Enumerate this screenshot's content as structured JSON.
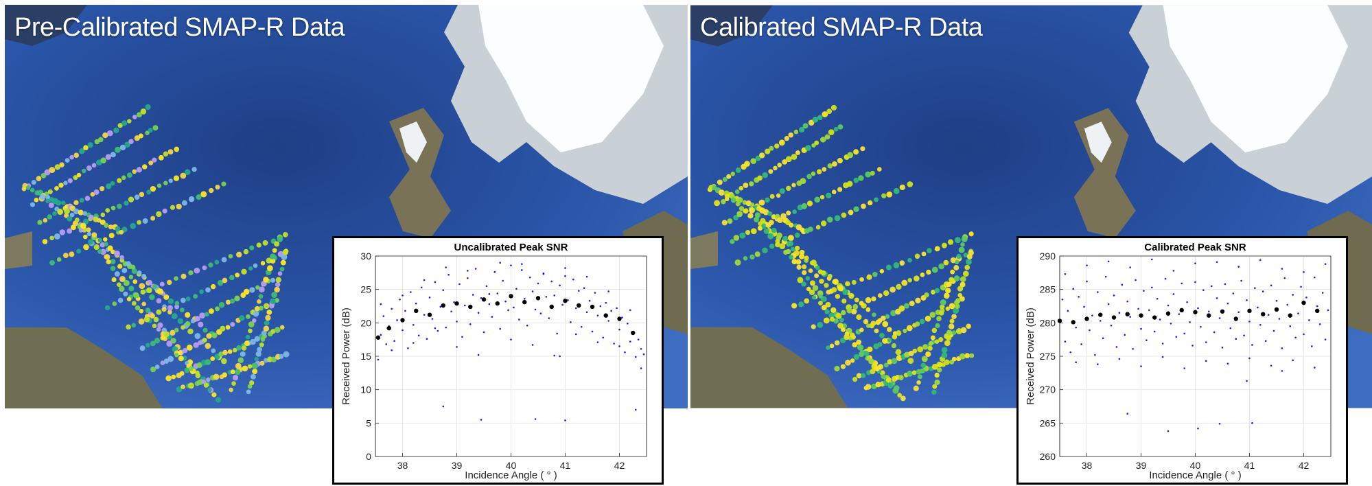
{
  "panels": [
    {
      "title": "Pre-Calibrated SMAP-R Data"
    },
    {
      "title": "Calibrated SMAP-R Data"
    }
  ],
  "chart_data": [
    {
      "type": "scatter",
      "title": "Uncalibrated Peak SNR",
      "xlabel": "Incidence Angle ( ° )",
      "ylabel": "Received Power (dB)",
      "xlim": [
        37.5,
        42.5
      ],
      "ylim": [
        0,
        30
      ],
      "xticks": [
        38,
        39,
        40,
        41,
        42
      ],
      "yticks": [
        0,
        5,
        10,
        15,
        20,
        25,
        30
      ],
      "grid": true,
      "series": [
        {
          "marker": "blue dots",
          "color": "#1a1aff",
          "x": [
            37.55,
            37.6,
            37.65,
            37.7,
            37.75,
            37.8,
            37.85,
            37.9,
            37.95,
            38.0,
            38.05,
            38.1,
            38.15,
            38.2,
            38.25,
            38.3,
            38.35,
            38.4,
            38.45,
            38.5,
            38.55,
            38.6,
            38.65,
            38.7,
            38.75,
            38.8,
            38.85,
            38.9,
            38.95,
            39.0,
            39.05,
            39.1,
            39.15,
            39.2,
            39.25,
            39.3,
            39.35,
            39.4,
            39.45,
            39.5,
            39.55,
            39.6,
            39.65,
            39.7,
            39.75,
            39.8,
            39.85,
            39.9,
            39.95,
            40.0,
            40.05,
            40.1,
            40.15,
            40.2,
            40.25,
            40.3,
            40.35,
            40.4,
            40.45,
            40.5,
            40.55,
            40.6,
            40.65,
            40.7,
            40.75,
            40.8,
            40.85,
            40.9,
            40.95,
            41.0,
            41.05,
            41.1,
            41.15,
            41.2,
            41.25,
            41.3,
            41.35,
            41.4,
            41.45,
            41.5,
            41.55,
            41.6,
            41.65,
            41.7,
            41.75,
            41.8,
            41.85,
            41.9,
            41.95,
            42.0,
            42.05,
            42.1,
            42.15,
            42.2,
            42.25,
            42.3,
            42.35,
            42.4,
            42.45,
            37.6,
            37.8,
            38.0,
            38.2,
            38.4,
            38.6,
            38.8,
            39.0,
            39.2,
            39.4,
            39.6,
            39.8,
            40.0,
            40.2,
            40.4,
            40.6,
            40.8,
            41.0,
            41.2,
            41.4,
            41.6,
            41.8,
            42.0,
            42.2,
            42.4,
            38.75,
            39.45,
            40.45,
            40.9,
            41.0,
            42.3
          ],
          "y": [
            14.5,
            18.2,
            21.0,
            16.8,
            19.5,
            22.1,
            17.3,
            20.4,
            23.5,
            18.9,
            21.8,
            16.2,
            24.6,
            19.7,
            22.9,
            18.1,
            25.3,
            21.2,
            17.6,
            23.8,
            20.6,
            26.1,
            18.8,
            22.4,
            24.9,
            19.3,
            27.2,
            21.7,
            23.1,
            20.2,
            25.8,
            17.9,
            22.6,
            26.7,
            19.8,
            24.2,
            28.1,
            21.5,
            23.7,
            18.6,
            25.5,
            22.8,
            20.9,
            27.6,
            24.4,
            19.1,
            26.3,
            23.2,
            21.9,
            28.6,
            22.3,
            25.1,
            20.5,
            27.9,
            23.6,
            19.6,
            26.8,
            24.7,
            22.0,
            25.9,
            21.4,
            27.3,
            23.9,
            20.7,
            26.2,
            24.1,
            18.4,
            25.6,
            22.7,
            27.0,
            23.4,
            20.1,
            26.5,
            22.2,
            24.8,
            19.4,
            25.2,
            21.6,
            23.3,
            18.7,
            24.5,
            21.1,
            22.5,
            17.8,
            23.0,
            20.3,
            21.8,
            16.9,
            22.2,
            19.0,
            20.8,
            15.6,
            19.9,
            17.2,
            18.5,
            14.9,
            17.5,
            16.1,
            15.3,
            22.8,
            15.9,
            24.1,
            17.0,
            26.4,
            19.2,
            28.3,
            16.4,
            27.8,
            15.2,
            24.3,
            29.0,
            17.5,
            28.8,
            16.7,
            27.4,
            15.1,
            28.2,
            18.3,
            26.9,
            17.1,
            24.7,
            16.5,
            21.9,
            13.2,
            7.5,
            5.5,
            5.6,
            15.0,
            5.4,
            7.0
          ]
        },
        {
          "marker": "black dots (binned mean)",
          "color": "#000000",
          "x": [
            37.55,
            37.75,
            38.0,
            38.25,
            38.5,
            38.75,
            39.0,
            39.25,
            39.5,
            39.75,
            40.0,
            40.25,
            40.5,
            40.75,
            41.0,
            41.25,
            41.5,
            41.75,
            42.0,
            42.25
          ],
          "y": [
            17.8,
            19.2,
            20.4,
            21.8,
            21.2,
            22.6,
            22.9,
            22.4,
            23.5,
            22.9,
            24.0,
            23.1,
            23.7,
            22.4,
            23.3,
            22.6,
            22.4,
            21.1,
            20.6,
            18.5
          ]
        }
      ]
    },
    {
      "type": "scatter",
      "title": "Calibrated Peak SNR",
      "xlabel": "Incidence Angle ( ° )",
      "ylabel": "Received Power (dB)",
      "xlim": [
        37.5,
        42.5
      ],
      "ylim": [
        260,
        290
      ],
      "xticks": [
        38,
        39,
        40,
        41,
        42
      ],
      "yticks": [
        260,
        265,
        270,
        275,
        280,
        285,
        290
      ],
      "grid": true,
      "series": [
        {
          "marker": "blue dots",
          "color": "#1a1aff",
          "x": [
            37.55,
            37.6,
            37.65,
            37.7,
            37.75,
            37.8,
            37.85,
            37.9,
            37.95,
            38.0,
            38.05,
            38.1,
            38.15,
            38.2,
            38.25,
            38.3,
            38.35,
            38.4,
            38.45,
            38.5,
            38.55,
            38.6,
            38.65,
            38.7,
            38.75,
            38.8,
            38.85,
            38.9,
            38.95,
            39.0,
            39.05,
            39.1,
            39.15,
            39.2,
            39.25,
            39.3,
            39.35,
            39.4,
            39.45,
            39.5,
            39.55,
            39.6,
            39.65,
            39.7,
            39.75,
            39.8,
            39.85,
            39.9,
            39.95,
            40.0,
            40.05,
            40.1,
            40.15,
            40.2,
            40.25,
            40.3,
            40.35,
            40.4,
            40.45,
            40.5,
            40.55,
            40.6,
            40.65,
            40.7,
            40.75,
            40.8,
            40.85,
            40.9,
            40.95,
            41.0,
            41.05,
            41.1,
            41.15,
            41.2,
            41.25,
            41.3,
            41.35,
            41.4,
            41.45,
            41.5,
            41.55,
            41.6,
            41.65,
            41.7,
            41.75,
            41.8,
            41.85,
            41.9,
            41.95,
            42.0,
            42.05,
            42.1,
            42.15,
            42.2,
            42.25,
            42.3,
            42.35,
            42.4,
            42.45,
            37.6,
            37.8,
            38.0,
            38.2,
            38.4,
            38.6,
            38.8,
            39.0,
            39.2,
            39.4,
            39.6,
            39.8,
            40.0,
            40.2,
            40.4,
            40.6,
            40.8,
            41.0,
            41.2,
            41.4,
            41.6,
            41.8,
            42.0,
            42.2,
            42.4,
            38.75,
            39.5,
            40.05,
            40.45,
            40.95,
            41.05,
            41.6
          ],
          "y": [
            283.5,
            277.2,
            281.8,
            275.6,
            285.1,
            279.3,
            283.9,
            276.8,
            282.4,
            286.2,
            278.9,
            281.1,
            275.2,
            284.6,
            280.3,
            277.7,
            286.9,
            282.8,
            279.6,
            284.1,
            276.4,
            281.5,
            285.7,
            278.2,
            283.2,
            280.9,
            276.1,
            286.4,
            282.1,
            279.1,
            284.8,
            277.4,
            281.9,
            285.3,
            278.7,
            283.6,
            280.5,
            276.9,
            286.6,
            282.6,
            279.9,
            284.3,
            277.9,
            281.3,
            285.9,
            278.4,
            283.1,
            280.1,
            276.6,
            286.1,
            282.2,
            279.4,
            284.9,
            277.1,
            281.7,
            285.5,
            278.6,
            283.7,
            280.7,
            276.3,
            285.8,
            282.9,
            279.2,
            284.4,
            277.6,
            281.6,
            286.3,
            278.1,
            283.4,
            280.2,
            276.7,
            285.2,
            282.3,
            279.7,
            284.7,
            277.3,
            281.2,
            285.6,
            278.8,
            283.3,
            280.6,
            276.2,
            286.7,
            282.7,
            279.5,
            284.2,
            277.8,
            281.4,
            285.4,
            278.3,
            283.8,
            280.4,
            276.5,
            286.8,
            282.5,
            279.8,
            284.5,
            277.5,
            281.9,
            287.3,
            274.1,
            288.6,
            273.8,
            289.2,
            274.6,
            288.3,
            273.5,
            289.5,
            274.9,
            287.8,
            273.2,
            288.9,
            274.3,
            289.1,
            273.9,
            288.4,
            274.7,
            289.4,
            273.6,
            288.1,
            274.4,
            287.6,
            273.3,
            288.8,
            266.4,
            263.8,
            264.2,
            264.9,
            271.3,
            265.0,
            272.8
          ]
        },
        {
          "marker": "black dots (binned mean)",
          "color": "#000000",
          "x": [
            37.5,
            37.75,
            38.0,
            38.25,
            38.5,
            38.75,
            39.0,
            39.25,
            39.5,
            39.75,
            40.0,
            40.25,
            40.5,
            40.75,
            41.0,
            41.25,
            41.5,
            41.75,
            42.0,
            42.25
          ],
          "y": [
            280.3,
            280.1,
            280.6,
            281.2,
            280.8,
            281.3,
            281.1,
            280.8,
            281.4,
            281.9,
            281.6,
            281.1,
            281.7,
            280.6,
            281.8,
            281.3,
            282.0,
            281.1,
            283.0,
            281.8
          ]
        }
      ]
    }
  ]
}
